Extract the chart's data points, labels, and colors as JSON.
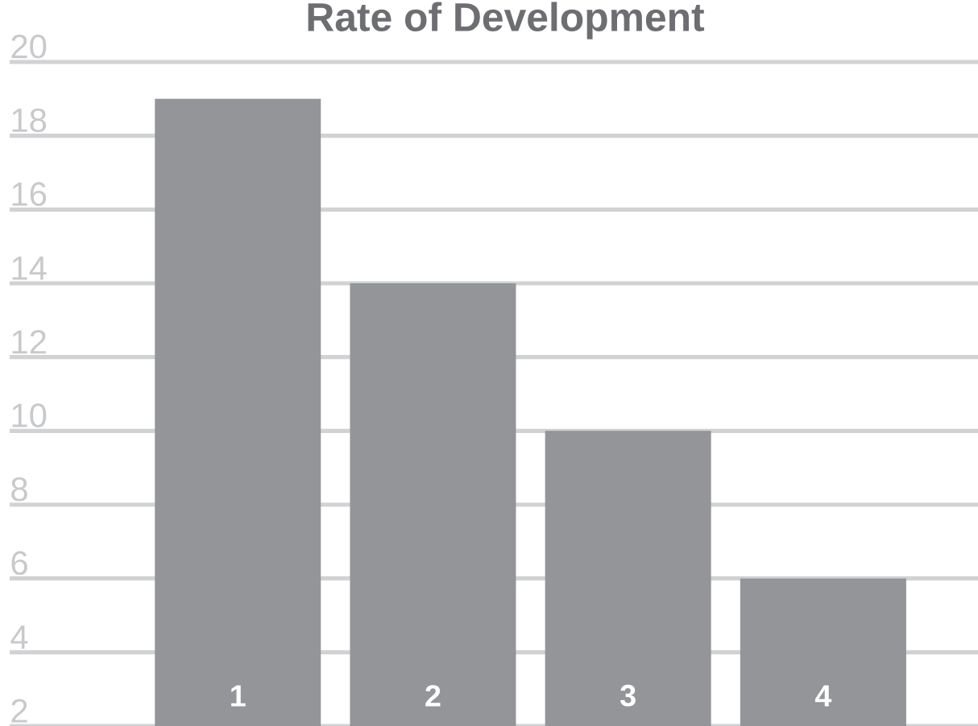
{
  "chart_data": {
    "type": "bar",
    "title": "Rate of Development",
    "categories": [
      "1",
      "2",
      "3",
      "4"
    ],
    "values": [
      19,
      14,
      10,
      6
    ],
    "color": "#939598",
    "ylim": [
      2,
      20
    ],
    "yticks": [
      2,
      4,
      6,
      8,
      10,
      12,
      14,
      16,
      18,
      20
    ],
    "grid": "y"
  }
}
